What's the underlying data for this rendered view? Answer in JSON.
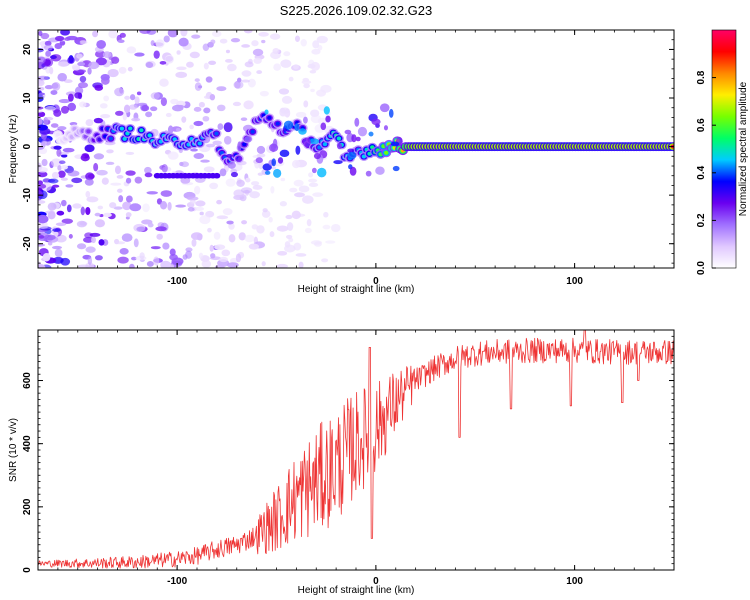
{
  "chart_data": [
    {
      "type": "heatmap",
      "title": "S225.2026.109.02.32.G23",
      "xlabel": "Height of straight line (km)",
      "ylabel": "Frequency (Hz)",
      "xlim": [
        -170,
        150
      ],
      "ylim": [
        -25,
        24
      ],
      "xticks": [
        "-100",
        "0",
        "100"
      ],
      "yticks": [
        "20",
        "10",
        "0",
        "-10",
        "-20"
      ],
      "colorbar": {
        "label": "Normalized spectral amplitude",
        "ticks": [
          "0.0",
          "0.2",
          "0.4",
          "0.6",
          "0.8"
        ],
        "range": [
          0,
          1
        ],
        "colors": [
          "#ffffff",
          "#e0c8ff",
          "#a070ff",
          "#6a00f0",
          "#0000ff",
          "#00ccff",
          "#00ff66",
          "#77ff00",
          "#ffee00",
          "#ff8800",
          "#ff0000",
          "#ff0066"
        ]
      },
      "ridge": [
        {
          "x": -160,
          "y": 2,
          "a": 0.05
        },
        {
          "x": -150,
          "y": 2.5,
          "a": 0.15
        },
        {
          "x": -140,
          "y": 2.5,
          "a": 0.3
        },
        {
          "x": -130,
          "y": 3,
          "a": 0.45
        },
        {
          "x": -120,
          "y": 2.5,
          "a": 0.5
        },
        {
          "x": -110,
          "y": 1,
          "a": 0.45
        },
        {
          "x": -100,
          "y": 1,
          "a": 0.45
        },
        {
          "x": -90,
          "y": 1.5,
          "a": 0.45
        },
        {
          "x": -80,
          "y": 2,
          "a": 0.4
        },
        {
          "x": -75,
          "y": -4,
          "a": 0.4
        },
        {
          "x": -68,
          "y": -1,
          "a": 0.35
        },
        {
          "x": -60,
          "y": 5,
          "a": 0.4
        },
        {
          "x": -55,
          "y": 6,
          "a": 0.35
        },
        {
          "x": -45,
          "y": 3,
          "a": 0.4
        },
        {
          "x": -40,
          "y": 4,
          "a": 0.35
        },
        {
          "x": -30,
          "y": 0,
          "a": 0.4
        },
        {
          "x": -20,
          "y": 2,
          "a": 0.5
        },
        {
          "x": -15,
          "y": -3,
          "a": 0.45
        },
        {
          "x": -10,
          "y": -1,
          "a": 0.4
        },
        {
          "x": 0,
          "y": -0.5,
          "a": 0.55
        },
        {
          "x": 10,
          "y": 0,
          "a": 0.7
        },
        {
          "x": 20,
          "y": 0,
          "a": 0.95
        },
        {
          "x": 50,
          "y": 0,
          "a": 0.95
        },
        {
          "x": 80,
          "y": 0,
          "a": 0.95
        },
        {
          "x": 100,
          "y": 0,
          "a": 0.95
        },
        {
          "x": 150,
          "y": 0,
          "a": 0.95
        }
      ]
    },
    {
      "type": "line",
      "xlabel": "Height of straight line (km)",
      "ylabel": "SNR (10 * v/v)",
      "xlim": [
        -170,
        150
      ],
      "ylim": [
        0,
        760
      ],
      "xticks": [
        "-100",
        "0",
        "100"
      ],
      "yticks": [
        "0",
        "200",
        "400",
        "600"
      ],
      "series": [
        {
          "name": "SNR",
          "color": "#ee3333",
          "trend": [
            [
              -170,
              20
            ],
            [
              -140,
              22
            ],
            [
              -120,
              25
            ],
            [
              -100,
              35
            ],
            [
              -90,
              45
            ],
            [
              -80,
              65
            ],
            [
              -70,
              80
            ],
            [
              -60,
              110
            ],
            [
              -50,
              160
            ],
            [
              -40,
              230
            ],
            [
              -30,
              280
            ],
            [
              -20,
              330
            ],
            [
              -10,
              400
            ],
            [
              0,
              450
            ],
            [
              10,
              530
            ],
            [
              20,
              600
            ],
            [
              30,
              640
            ],
            [
              40,
              670
            ],
            [
              50,
              685
            ],
            [
              60,
              690
            ],
            [
              80,
              695
            ],
            [
              100,
              695
            ],
            [
              120,
              690
            ],
            [
              150,
              690
            ]
          ],
          "dips": [
            [
              -2,
              100
            ],
            [
              42,
              420
            ],
            [
              68,
              510
            ],
            [
              98,
              520
            ],
            [
              124,
              530
            ],
            [
              132,
              600
            ]
          ],
          "spikes": [
            [
              -3,
              705
            ],
            [
              105,
              760
            ]
          ]
        }
      ]
    }
  ]
}
